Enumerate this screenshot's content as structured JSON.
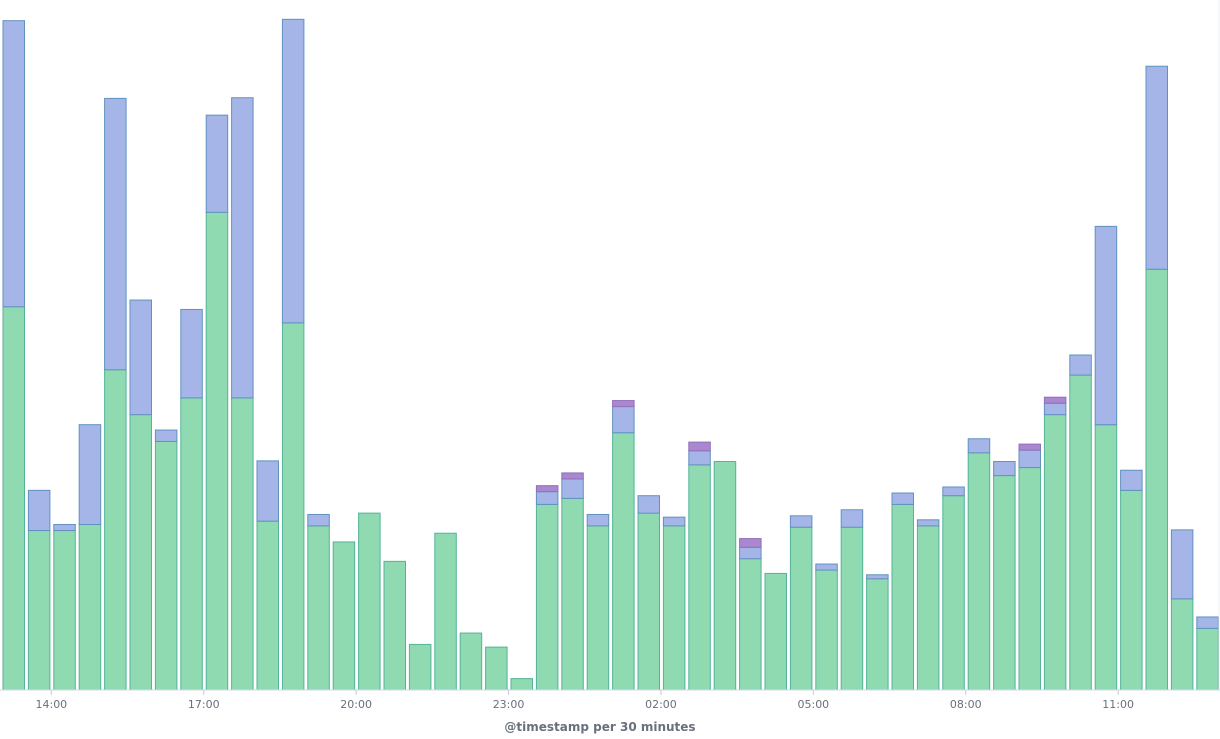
{
  "chart_data": {
    "type": "bar",
    "stacked": true,
    "title": "",
    "xlabel": "@timestamp per 30 minutes",
    "ylabel": "",
    "ylim": [
      0,
      1
    ],
    "grid": false,
    "legend": "none",
    "x_ticks": [
      "14:00",
      "17:00",
      "20:00",
      "23:00",
      "02:00",
      "05:00",
      "08:00",
      "11:00"
    ],
    "categories": [
      "13:30",
      "14:00",
      "14:30",
      "15:00",
      "15:30",
      "16:00",
      "16:30",
      "17:00",
      "17:30",
      "18:00",
      "18:30",
      "19:00",
      "19:30",
      "20:00",
      "20:30",
      "21:00",
      "21:30",
      "22:00",
      "22:30",
      "23:00",
      "23:30",
      "00:00",
      "00:30",
      "01:00",
      "01:30",
      "02:00",
      "02:30",
      "03:00",
      "03:30",
      "04:00",
      "04:30",
      "05:00",
      "05:30",
      "06:00",
      "06:30",
      "07:00",
      "07:30",
      "08:00",
      "08:30",
      "09:00",
      "09:30",
      "10:00",
      "10:30",
      "11:00",
      "11:30",
      "12:00",
      "12:30",
      "13:00"
    ],
    "series": [
      {
        "color": "#8fdab0",
        "stroke": "#54b399",
        "values": [
          0.572,
          0.238,
          0.238,
          0.247,
          0.478,
          0.411,
          0.371,
          0.436,
          0.713,
          0.436,
          0.252,
          0.548,
          0.245,
          0.221,
          0.264,
          0.192,
          0.068,
          0.234,
          0.085,
          0.064,
          0.017,
          0.277,
          0.286,
          0.245,
          0.384,
          0.264,
          0.245,
          0.336,
          0.341,
          0.196,
          0.174,
          0.243,
          0.179,
          0.243,
          0.166,
          0.277,
          0.245,
          0.29,
          0.354,
          0.32,
          0.332,
          0.411,
          0.47,
          0.396,
          0.298,
          0.628,
          0.136,
          0.092
        ]
      },
      {
        "color": "#a5b5e8",
        "stroke": "#6092c0",
        "values": [
          0.427,
          0.06,
          0.009,
          0.149,
          0.405,
          0.171,
          0.017,
          0.132,
          0.145,
          0.448,
          0.09,
          0.453,
          0.017,
          0,
          0,
          0,
          0,
          0,
          0,
          0,
          0,
          0.019,
          0.029,
          0.017,
          0.039,
          0.026,
          0.013,
          0.021,
          0,
          0.017,
          0,
          0.017,
          0.009,
          0.026,
          0.006,
          0.017,
          0.009,
          0.013,
          0.021,
          0.021,
          0.026,
          0.017,
          0.03,
          0.296,
          0.03,
          0.303,
          0.103,
          0.017
        ]
      },
      {
        "color": "#a987d1",
        "stroke": "#9170b8",
        "values": [
          0,
          0,
          0,
          0,
          0,
          0,
          0,
          0,
          0,
          0,
          0,
          0,
          0,
          0,
          0,
          0,
          0,
          0,
          0,
          0,
          0,
          0.009,
          0.009,
          0,
          0.009,
          0,
          0,
          0.013,
          0,
          0.013,
          0,
          0,
          0,
          0,
          0,
          0,
          0,
          0,
          0,
          0,
          0.009,
          0.009,
          0,
          0,
          0,
          0,
          0,
          0
        ]
      }
    ]
  }
}
